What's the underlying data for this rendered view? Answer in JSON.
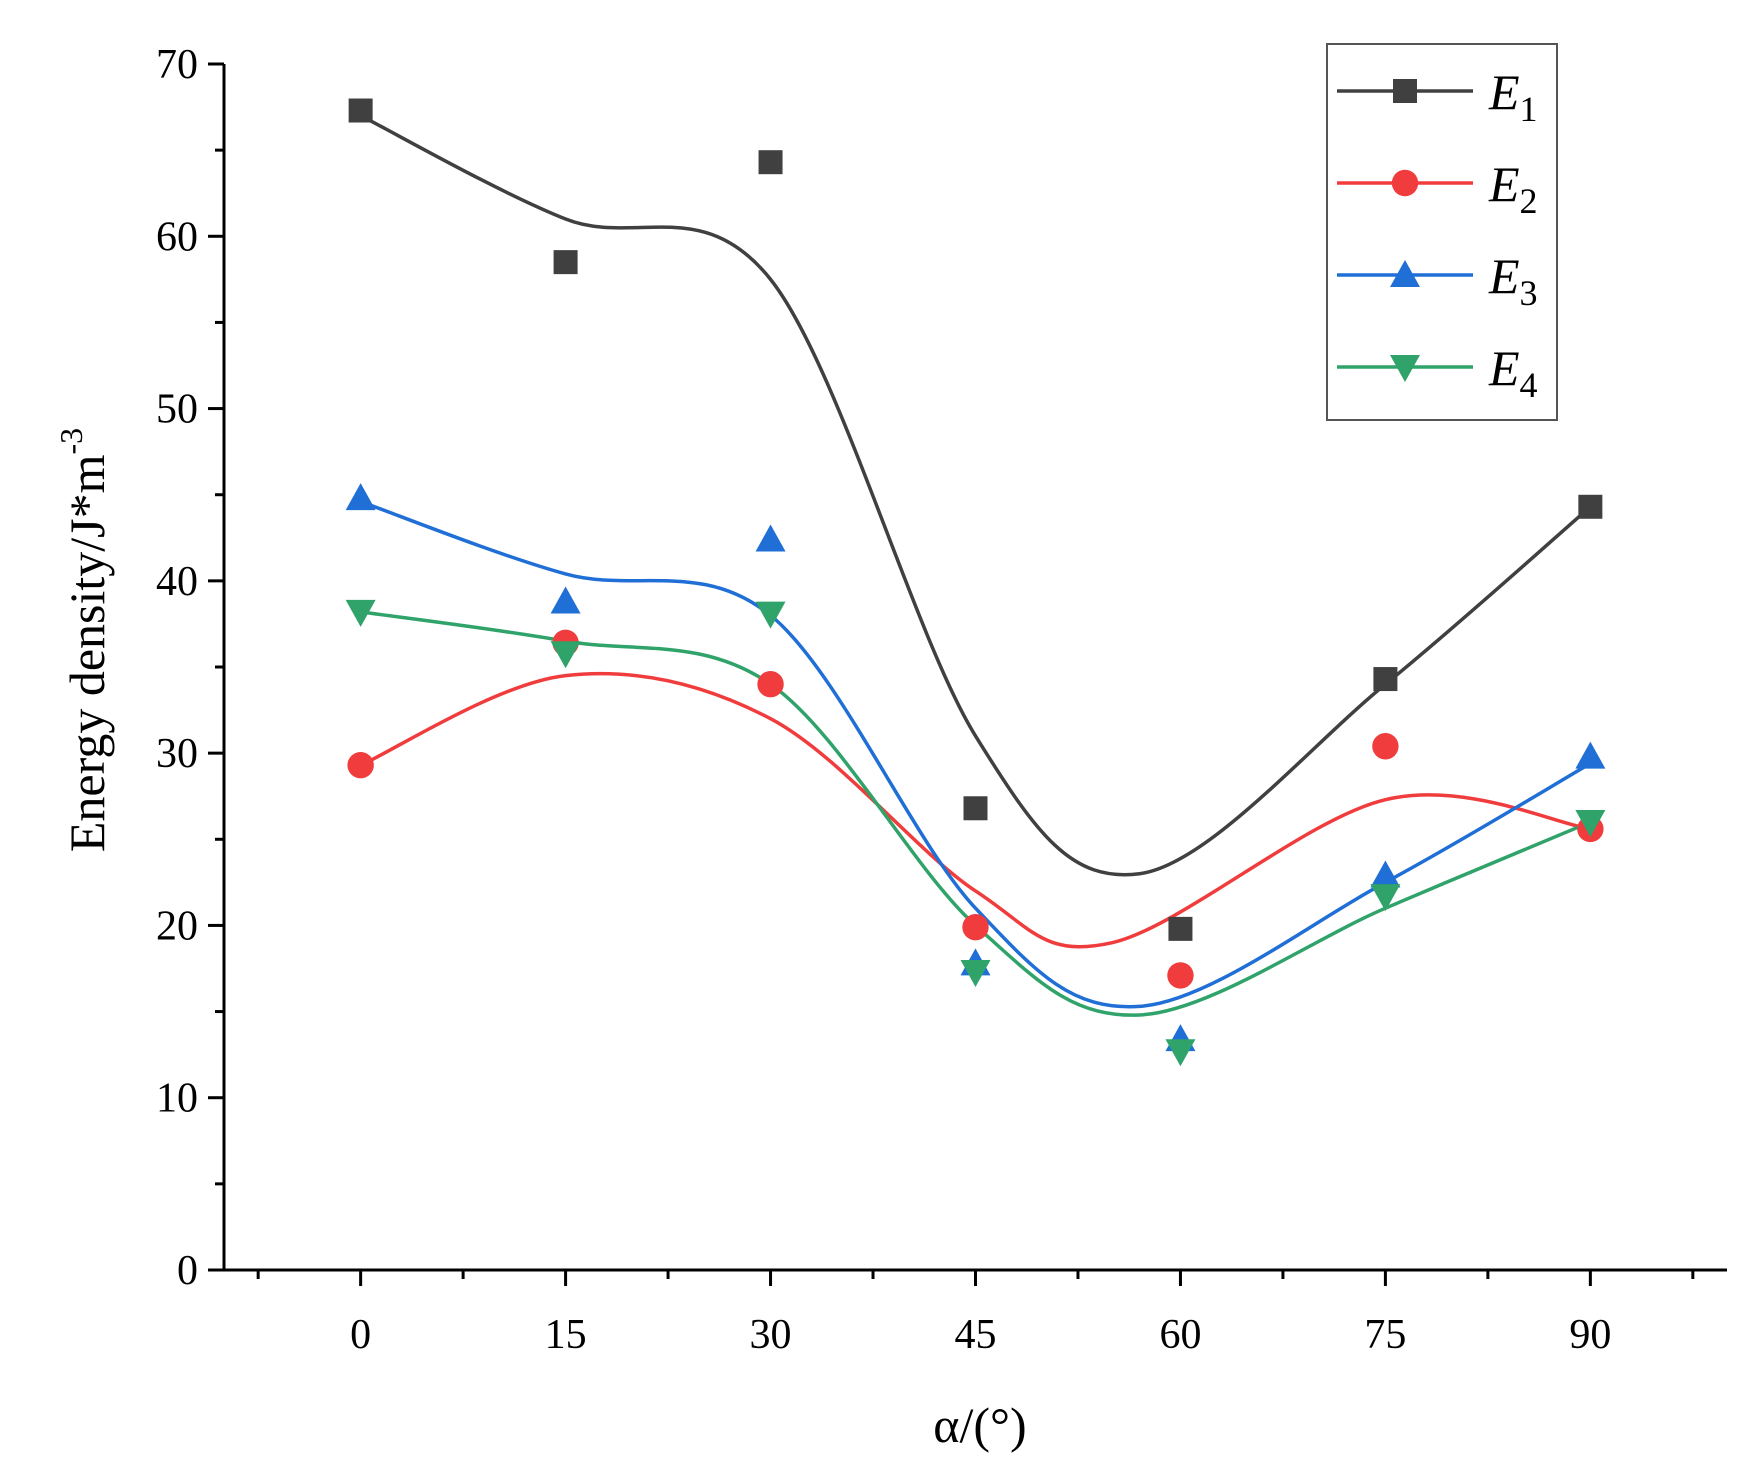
{
  "chart_data": {
    "type": "line",
    "title": "",
    "xlabel": "α/(°)",
    "ylabel": "Energy density/J*m",
    "ylabel_superscript": "-3",
    "xlim": [
      -10,
      100
    ],
    "ylim": [
      0,
      70
    ],
    "x_ticks": [
      0,
      15,
      30,
      45,
      60,
      75,
      90
    ],
    "y_ticks": [
      0,
      10,
      20,
      30,
      40,
      50,
      60,
      70
    ],
    "x": [
      0,
      15,
      30,
      45,
      60,
      75,
      90
    ],
    "legend_position": "top-right",
    "series": [
      {
        "name": "E",
        "subscript": "1",
        "marker": "square",
        "color": "#404040",
        "values": [
          67.3,
          58.5,
          64.3,
          26.8,
          19.8,
          34.3,
          44.3
        ],
        "fit": [
          [
            0,
            67.0
          ],
          [
            15,
            61.0
          ],
          [
            30,
            57.5
          ],
          [
            45,
            31.0
          ],
          [
            57,
            23.0
          ],
          [
            75,
            34.0
          ],
          [
            90,
            44.3
          ]
        ]
      },
      {
        "name": "E",
        "subscript": "2",
        "marker": "circle",
        "color": "#f03c3c",
        "values": [
          29.3,
          36.4,
          34.0,
          19.9,
          17.1,
          30.4,
          25.6
        ],
        "fit": [
          [
            0,
            29.3
          ],
          [
            15,
            34.5
          ],
          [
            30,
            32.0
          ],
          [
            45,
            22.0
          ],
          [
            55,
            19.0
          ],
          [
            75,
            27.3
          ],
          [
            90,
            25.6
          ]
        ]
      },
      {
        "name": "E",
        "subscript": "3",
        "marker": "triangle-up",
        "color": "#1f6fd6",
        "values": [
          44.8,
          38.8,
          42.4,
          17.8,
          13.4,
          22.9,
          29.8
        ],
        "fit": [
          [
            0,
            44.6
          ],
          [
            15,
            40.4
          ],
          [
            30,
            38.0
          ],
          [
            45,
            21.0
          ],
          [
            57,
            15.3
          ],
          [
            75,
            22.5
          ],
          [
            90,
            29.4
          ]
        ]
      },
      {
        "name": "E",
        "subscript": "4",
        "marker": "triangle-down",
        "color": "#2fa36a",
        "values": [
          38.2,
          35.8,
          38.1,
          17.3,
          12.7,
          21.7,
          26.0
        ],
        "fit": [
          [
            0,
            38.2
          ],
          [
            15,
            36.5
          ],
          [
            30,
            34.0
          ],
          [
            45,
            20.0
          ],
          [
            57,
            14.8
          ],
          [
            75,
            21.0
          ],
          [
            90,
            26.0
          ]
        ]
      }
    ]
  }
}
